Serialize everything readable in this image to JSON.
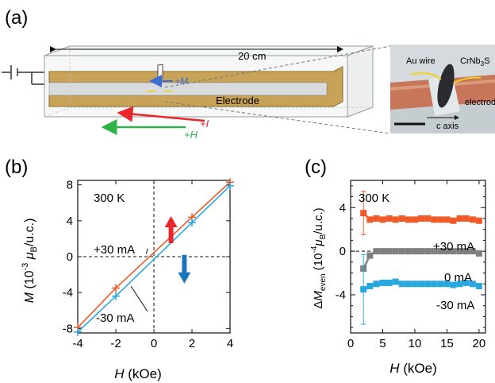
{
  "panel_a": {
    "label": "(a)",
    "length_label": "20 cm",
    "magnetization_label": "+M",
    "electrode_label": "Electrode",
    "current_label": "+I",
    "field_label": "+H",
    "photo": {
      "au_wire_label": "Au wire",
      "sample_label_prefix": "CrNb",
      "sample_sub_1": "3",
      "sample_label_suffix": "S",
      "electrode_label": "electrode",
      "axis_label": "c axis"
    },
    "colors": {
      "current_arrow": "#e8262b",
      "field_arrow": "#2fb24a",
      "magnetization_arrow": "#3a6fd0",
      "electrode_fill": "#c7a257"
    }
  },
  "panel_b": {
    "label": "(b)",
    "temperature": "300 K",
    "annotation_plus": "+30 mA",
    "annotation_minus": "-30 mA",
    "xlabel_var": "H",
    "xlabel_unit": " (kOe)",
    "ylabel_var": "M",
    "ylabel_unit_pre": " (10",
    "ylabel_exp": "-3",
    "ylabel_mu": " μ",
    "ylabel_sub": "B",
    "ylabel_unit_post": "/u.c.)",
    "x_ticks": [
      "-4",
      "-2",
      "0",
      "2",
      "4"
    ],
    "y_ticks": [
      "-8",
      "-4",
      "0",
      "4",
      "8"
    ],
    "colors": {
      "plus_30": "#f05a28",
      "minus_30": "#29a8e0",
      "up_arrow": "#e8262b",
      "down_arrow": "#1b75bc"
    }
  },
  "panel_c": {
    "label": "(c)",
    "temperature": "300 K",
    "annotation_plus": "+30 mA",
    "annotation_zero": "0 mA",
    "annotation_minus": "-30 mA",
    "xlabel_var": "H",
    "xlabel_unit": " (kOe)",
    "ylabel_delta": "Δ",
    "ylabel_var": "M",
    "ylabel_sub": "even",
    "ylabel_unit_pre": " (10",
    "ylabel_exp": "-4",
    "ylabel_mu": "μ",
    "ylabel_sub2": "B",
    "ylabel_unit_post": "/u.c.)",
    "x_ticks": [
      "0",
      "5",
      "10",
      "15",
      "20"
    ],
    "y_ticks": [
      "-4",
      "0",
      "4"
    ],
    "colors": {
      "plus_30": "#f05a28",
      "zero": "#808080",
      "minus_30": "#29a8e0"
    }
  },
  "chart_data": [
    {
      "type": "line",
      "panel": "(b)",
      "xlabel": "H (kOe)",
      "ylabel": "M (10^-3 μB/u.c.)",
      "xlim": [
        -4,
        4
      ],
      "ylim": [
        -8.5,
        8.5
      ],
      "annotations": [
        "300 K",
        "+30 mA",
        "-30 mA"
      ],
      "series": [
        {
          "name": "+30 mA",
          "color": "#f05a28",
          "x": [
            -4,
            -2,
            2,
            4
          ],
          "y": [
            -7.9,
            -3.5,
            4.4,
            8.3
          ]
        },
        {
          "name": "-30 mA",
          "color": "#29a8e0",
          "x": [
            -4,
            -2,
            2,
            4
          ],
          "y": [
            -8.4,
            -4.4,
            3.8,
            7.9
          ]
        }
      ]
    },
    {
      "type": "line",
      "panel": "(c)",
      "xlabel": "H (kOe)",
      "ylabel": "ΔM_even (10^-4 μB/u.c.)",
      "xlim": [
        0,
        21
      ],
      "ylim": [
        -7.5,
        6.5
      ],
      "annotations": [
        "300 K",
        "+30 mA",
        "0 mA",
        "-30 mA"
      ],
      "series": [
        {
          "name": "+30 mA",
          "color": "#f05a28",
          "x": [
            2,
            3,
            4,
            5,
            6,
            7,
            8,
            9,
            10,
            11,
            12,
            13,
            14,
            15,
            16,
            17,
            18,
            19,
            20
          ],
          "y": [
            3.5,
            2.9,
            3.0,
            2.9,
            3.0,
            2.9,
            3.0,
            2.9,
            2.9,
            3.0,
            3.0,
            2.9,
            2.9,
            2.9,
            2.8,
            3.0,
            3.0,
            2.9,
            2.8
          ],
          "error_first": 2.0
        },
        {
          "name": "0 mA",
          "color": "#808080",
          "x": [
            2,
            3,
            4,
            5,
            6,
            7,
            8,
            9,
            10,
            11,
            12,
            13,
            14,
            15,
            16,
            17,
            18,
            19,
            20
          ],
          "y": [
            -1.6,
            -0.4,
            0.0,
            0.0,
            0.0,
            0.0,
            0.0,
            0.0,
            0.0,
            0.0,
            0.0,
            0.0,
            0.0,
            0.0,
            0.0,
            0.0,
            0.0,
            0.0,
            -0.2
          ],
          "error_first": 0.0
        },
        {
          "name": "-30 mA",
          "color": "#29a8e0",
          "x": [
            2,
            3,
            4,
            5,
            6,
            7,
            8,
            9,
            10,
            11,
            12,
            13,
            14,
            15,
            16,
            17,
            18,
            19,
            20
          ],
          "y": [
            -3.5,
            -3.2,
            -3.0,
            -2.9,
            -2.9,
            -2.8,
            -3.0,
            -3.0,
            -3.0,
            -3.0,
            -3.0,
            -3.0,
            -3.0,
            -3.0,
            -3.1,
            -3.0,
            -2.9,
            -3.0,
            -3.2
          ],
          "error_first": 3.2
        }
      ]
    }
  ]
}
